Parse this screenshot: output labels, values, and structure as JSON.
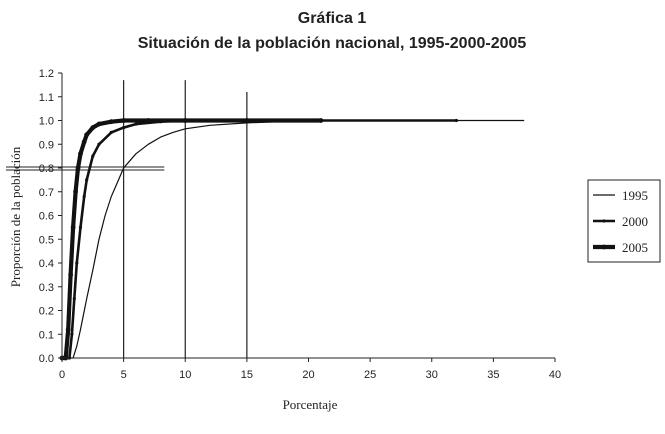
{
  "chart_data": {
    "type": "line",
    "title": "Gráfica 1",
    "subtitle": "Situación de la población nacional, 1995-2000-2005",
    "xlabel": "Porcentaje",
    "ylabel": "Proporción de la población",
    "xlim": [
      0,
      40
    ],
    "ylim": [
      0,
      1.2
    ],
    "xticks": [
      "0",
      "5",
      "10",
      "15",
      "20",
      "25",
      "30",
      "35",
      "40"
    ],
    "yticks": [
      "0.0",
      "0.1",
      "0.2",
      "0.3",
      "0.4",
      "0.5",
      "0.6",
      "0.7",
      "0.8",
      "0.9",
      "1.0",
      "1.1",
      "1.2"
    ],
    "grid": false,
    "legend_position": "right",
    "reference_lines": {
      "vertical_x": [
        5,
        10,
        15
      ],
      "vertical_top_y": [
        1.17,
        1.17,
        1.12
      ],
      "horizontal_y": 0.8,
      "horizontal_x_end": 8.3
    },
    "series": [
      {
        "name": "1995",
        "style": "thin",
        "x": [
          0,
          0.9,
          1.2,
          1.5,
          2.0,
          2.5,
          3.0,
          3.5,
          4.0,
          4.5,
          5.0,
          6.0,
          7.0,
          8.0,
          9.0,
          10.0,
          12.0,
          15.0,
          20.0,
          30.0,
          37.5
        ],
        "y": [
          0.0,
          0.0,
          0.05,
          0.12,
          0.25,
          0.37,
          0.5,
          0.6,
          0.68,
          0.74,
          0.8,
          0.86,
          0.9,
          0.93,
          0.95,
          0.965,
          0.98,
          0.99,
          1.0,
          1.0,
          1.0
        ]
      },
      {
        "name": "2000",
        "style": "medium",
        "x": [
          0,
          0.6,
          0.8,
          1.0,
          1.2,
          1.5,
          1.8,
          2.0,
          2.5,
          3.0,
          4.0,
          5.0,
          6.0,
          8.0,
          10.0,
          15.0,
          20.0,
          32.0
        ],
        "y": [
          0.0,
          0.0,
          0.1,
          0.25,
          0.4,
          0.55,
          0.68,
          0.75,
          0.85,
          0.9,
          0.95,
          0.97,
          0.985,
          0.995,
          1.0,
          1.0,
          1.0,
          1.0
        ]
      },
      {
        "name": "2005",
        "style": "thick",
        "x": [
          0,
          0.3,
          0.5,
          0.7,
          0.9,
          1.1,
          1.3,
          1.5,
          1.8,
          2.0,
          2.5,
          3.0,
          4.0,
          5.0,
          7.0,
          10.0,
          15.0,
          21.0
        ],
        "y": [
          0.0,
          0.0,
          0.12,
          0.35,
          0.55,
          0.7,
          0.8,
          0.86,
          0.91,
          0.94,
          0.97,
          0.985,
          0.995,
          1.0,
          1.0,
          1.0,
          1.0,
          1.0
        ]
      }
    ]
  }
}
